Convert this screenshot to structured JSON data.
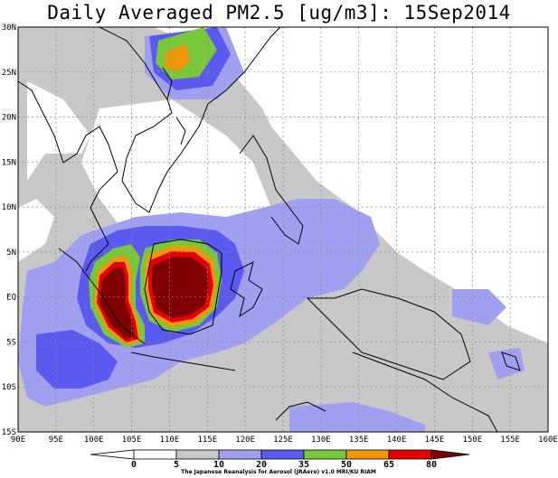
{
  "title": "Daily Averaged PM2.5 [ug/m3]: 15Sep2014",
  "lon_ticks": [
    "90E",
    "95E",
    "100E",
    "105E",
    "110E",
    "115E",
    "120E",
    "125E",
    "130E",
    "135E",
    "140E",
    "145E",
    "150E",
    "155E",
    "160E"
  ],
  "lat_ticks": [
    "30N",
    "25N",
    "20N",
    "15N",
    "10N",
    "5N",
    "EQ",
    "5S",
    "10S",
    "15S"
  ],
  "colorbar": {
    "labels": [
      "0",
      "5",
      "10",
      "20",
      "35",
      "50",
      "65",
      "80"
    ],
    "colors": [
      "#ffffff",
      "#c8c8c8",
      "#a0a0f0",
      "#5a5af0",
      "#78c83c",
      "#f0960a",
      "#e60000",
      "#800000"
    ]
  },
  "credit": "The Japanese Reanalysis for Aerosol (JRAero) v1.0 MRI/KU RIAM"
}
